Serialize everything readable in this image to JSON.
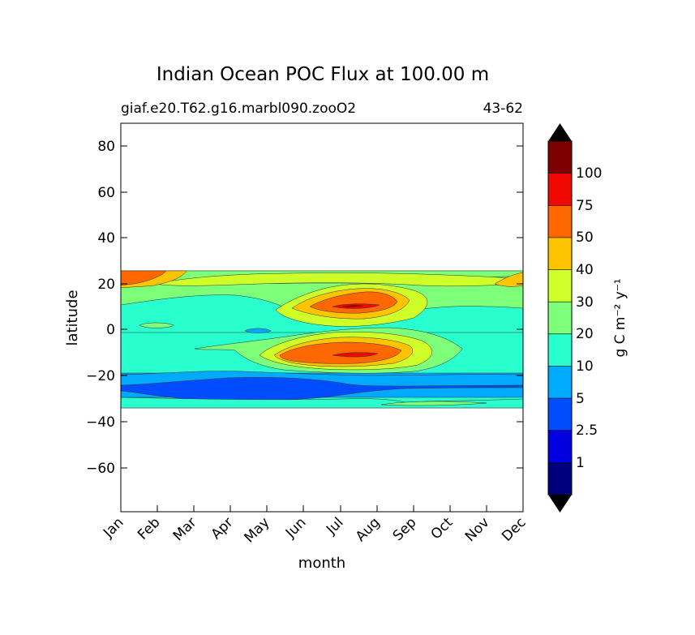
{
  "chart_data": {
    "type": "heatmap",
    "title": "Indian Ocean POC Flux at 100.00 m",
    "subtitle_left": "giaf.e20.T62.g16.marbl090.zooO2",
    "subtitle_right": "43-62",
    "xlabel": "month",
    "ylabel": "latitude",
    "x_ticks": [
      "Jan",
      "Feb",
      "Mar",
      "Apr",
      "May",
      "Jun",
      "Jul",
      "Aug",
      "Sep",
      "Oct",
      "Nov",
      "Dec"
    ],
    "ylim": [
      -79,
      90
    ],
    "y_ticks": [
      80,
      60,
      40,
      20,
      0,
      -20,
      -40,
      -60
    ],
    "y_tick_labels": [
      "80",
      "60",
      "40",
      "20",
      "0",
      "−20",
      "−40",
      "−60"
    ],
    "colorbar": {
      "label": "g C m⁻² y⁻¹",
      "levels": [
        0.5,
        1,
        2.5,
        5,
        10,
        20,
        30,
        40,
        50,
        75,
        100,
        150
      ],
      "tick_labels": [
        "1",
        "2.5",
        "5",
        "10",
        "20",
        "30",
        "40",
        "50",
        "75",
        "100"
      ],
      "colors": [
        "#00007f",
        "#0000e0",
        "#004dff",
        "#00aaff",
        "#29ffce",
        "#7dff7a",
        "#ceff29",
        "#ffc400",
        "#ff6800",
        "#f10800",
        "#7f0000"
      ],
      "extend_low_color": "#000000",
      "extend_high_color": "#000000"
    },
    "data_extent": {
      "lat_min": -33.5,
      "lat_max": 25.5
    },
    "bands": [
      {
        "lat_top": 25.5,
        "lat_bot": 20,
        "level": "20-30"
      },
      {
        "lat_top": 20,
        "lat_bot": 5,
        "level": "20-30"
      },
      {
        "lat_top": 5,
        "lat_bot": -19,
        "level": "10-20"
      },
      {
        "lat_top": -19,
        "lat_bot": -23,
        "level": "5-10"
      },
      {
        "lat_top": -23,
        "lat_bot": -30,
        "level": "2.5-5"
      },
      {
        "lat_top": -30,
        "lat_bot": -33.5,
        "level": "10-20"
      }
    ],
    "features": [
      {
        "name": "northern maximum",
        "month_center": 7.3,
        "lat_center": 10,
        "peak_level": "75-100"
      },
      {
        "name": "southern maximum",
        "month_center": 7.2,
        "lat_center": -11,
        "peak_level": "75-100"
      },
      {
        "name": "western high near 20N",
        "month_center": 0.6,
        "lat_center": 22.5,
        "peak_level": "50-75"
      },
      {
        "name": "south subtropical minimum",
        "month_center": 4.0,
        "lat_center": -26.5,
        "peak_level": "2.5-5"
      }
    ]
  }
}
